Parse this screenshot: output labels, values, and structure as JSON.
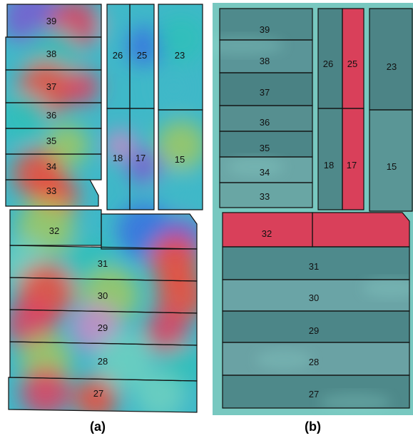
{
  "colors": {
    "plot_boundary": "#111111",
    "panel_a_palette": [
      "#3fb8c8",
      "#2ec0b8",
      "#6fd0c0",
      "#a0c860",
      "#f04a3a",
      "#e04060",
      "#7a5ad0",
      "#3a70e0",
      "#c88ac8"
    ],
    "panel_b_base": "#4e8f8f",
    "panel_b_light": "#8ed6d0",
    "panel_b_red": "#d9405a",
    "panel_b_background": "#78c8c0"
  },
  "panels": [
    {
      "caption": "(a)",
      "plots": [
        "39",
        "38",
        "37",
        "36",
        "35",
        "34",
        "33",
        "26",
        "25",
        "23",
        "18",
        "17",
        "15",
        "32",
        "31",
        "30",
        "29",
        "28",
        "27"
      ]
    },
    {
      "caption": "(b)",
      "plots": [
        "39",
        "38",
        "37",
        "36",
        "35",
        "34",
        "33",
        "26",
        "25",
        "23",
        "18",
        "17",
        "15",
        "32",
        "31",
        "30",
        "29",
        "28",
        "27"
      ],
      "highlighted_red_plots": [
        "25",
        "17",
        "32"
      ]
    }
  ]
}
